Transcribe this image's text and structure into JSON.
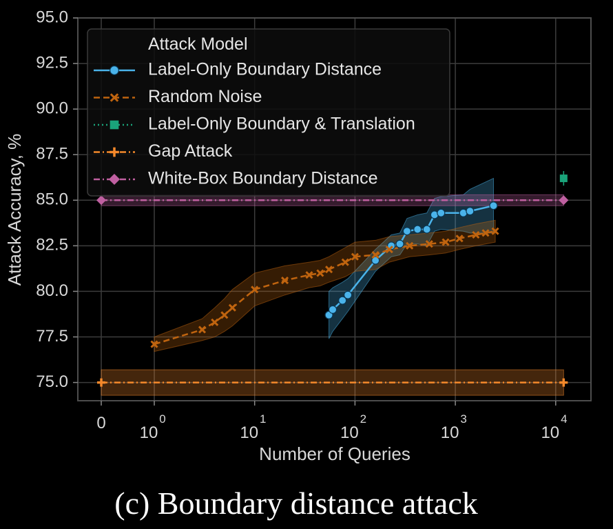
{
  "caption": "(c) Boundary distance attack",
  "chart_data": {
    "type": "line",
    "title": "",
    "xlabel": "Number of Queries",
    "ylabel": "Attack Accuracy, %",
    "xscale": "symlog",
    "ylim": [
      74,
      95
    ],
    "yticks": [
      75.0,
      77.5,
      80.0,
      82.5,
      85.0,
      87.5,
      90.0,
      92.5,
      95.0
    ],
    "xticks": [
      {
        "value": 0,
        "base": "0",
        "exp": ""
      },
      {
        "value": 1,
        "base": "10",
        "exp": "0"
      },
      {
        "value": 10,
        "base": "10",
        "exp": "1"
      },
      {
        "value": 100,
        "base": "10",
        "exp": "2"
      },
      {
        "value": 1000,
        "base": "10",
        "exp": "3"
      },
      {
        "value": 10000,
        "base": "10",
        "exp": "4"
      }
    ],
    "grid": true,
    "legend": {
      "title": "Attack Model",
      "position": "top-left"
    },
    "series": [
      {
        "name": "Label-Only Boundary Distance",
        "color": "#4ab3ea",
        "style": "solid",
        "marker": "circle",
        "x": [
          55,
          60,
          75,
          85,
          160,
          230,
          280,
          330,
          420,
          520,
          620,
          720,
          1200,
          1400,
          2400
        ],
        "y": [
          78.7,
          79.0,
          79.5,
          79.8,
          81.7,
          82.5,
          82.6,
          83.3,
          83.4,
          83.4,
          84.2,
          84.3,
          84.3,
          84.4,
          84.7
        ],
        "band": [
          1.3,
          1.2,
          1.0,
          0.9,
          0.6,
          0.6,
          0.6,
          0.7,
          0.8,
          0.9,
          0.9,
          0.9,
          1.0,
          1.2,
          1.5
        ]
      },
      {
        "name": "Random Noise",
        "color": "#c0640f",
        "style": "dashed",
        "marker": "x",
        "x": [
          1,
          3,
          4,
          5,
          6,
          10,
          20,
          35,
          45,
          55,
          80,
          100,
          160,
          220,
          350,
          550,
          800,
          1100,
          1600,
          2000,
          2500
        ],
        "y": [
          77.1,
          77.9,
          78.3,
          78.7,
          79.1,
          80.1,
          80.6,
          80.9,
          81.0,
          81.2,
          81.6,
          81.9,
          82.0,
          82.3,
          82.5,
          82.6,
          82.7,
          82.9,
          83.1,
          83.2,
          83.3
        ],
        "band": [
          0.4,
          0.6,
          0.8,
          0.9,
          1.0,
          0.9,
          0.8,
          0.7,
          0.7,
          0.7,
          0.8,
          0.8,
          0.8,
          0.7,
          0.6,
          0.6,
          0.6,
          0.6,
          0.6,
          0.6,
          0.6
        ]
      },
      {
        "name": "Label-Only Boundary & Translation",
        "color": "#1aa37a",
        "style": "dotted",
        "marker": "square",
        "x": [
          12000
        ],
        "y": [
          86.2
        ],
        "band": [
          0.4
        ]
      },
      {
        "name": "Gap Attack",
        "color": "#f5892b",
        "style": "dashdot",
        "marker": "plus",
        "x": [
          0,
          12000
        ],
        "y": [
          75.0,
          75.0
        ],
        "band": [
          0.7,
          0.7
        ]
      },
      {
        "name": "White-Box Boundary Distance",
        "color": "#c060a1",
        "style": "dashdot",
        "marker": "diamond",
        "x": [
          0,
          12000
        ],
        "y": [
          85.0,
          85.0
        ],
        "band": [
          0.3,
          0.3
        ]
      }
    ]
  }
}
